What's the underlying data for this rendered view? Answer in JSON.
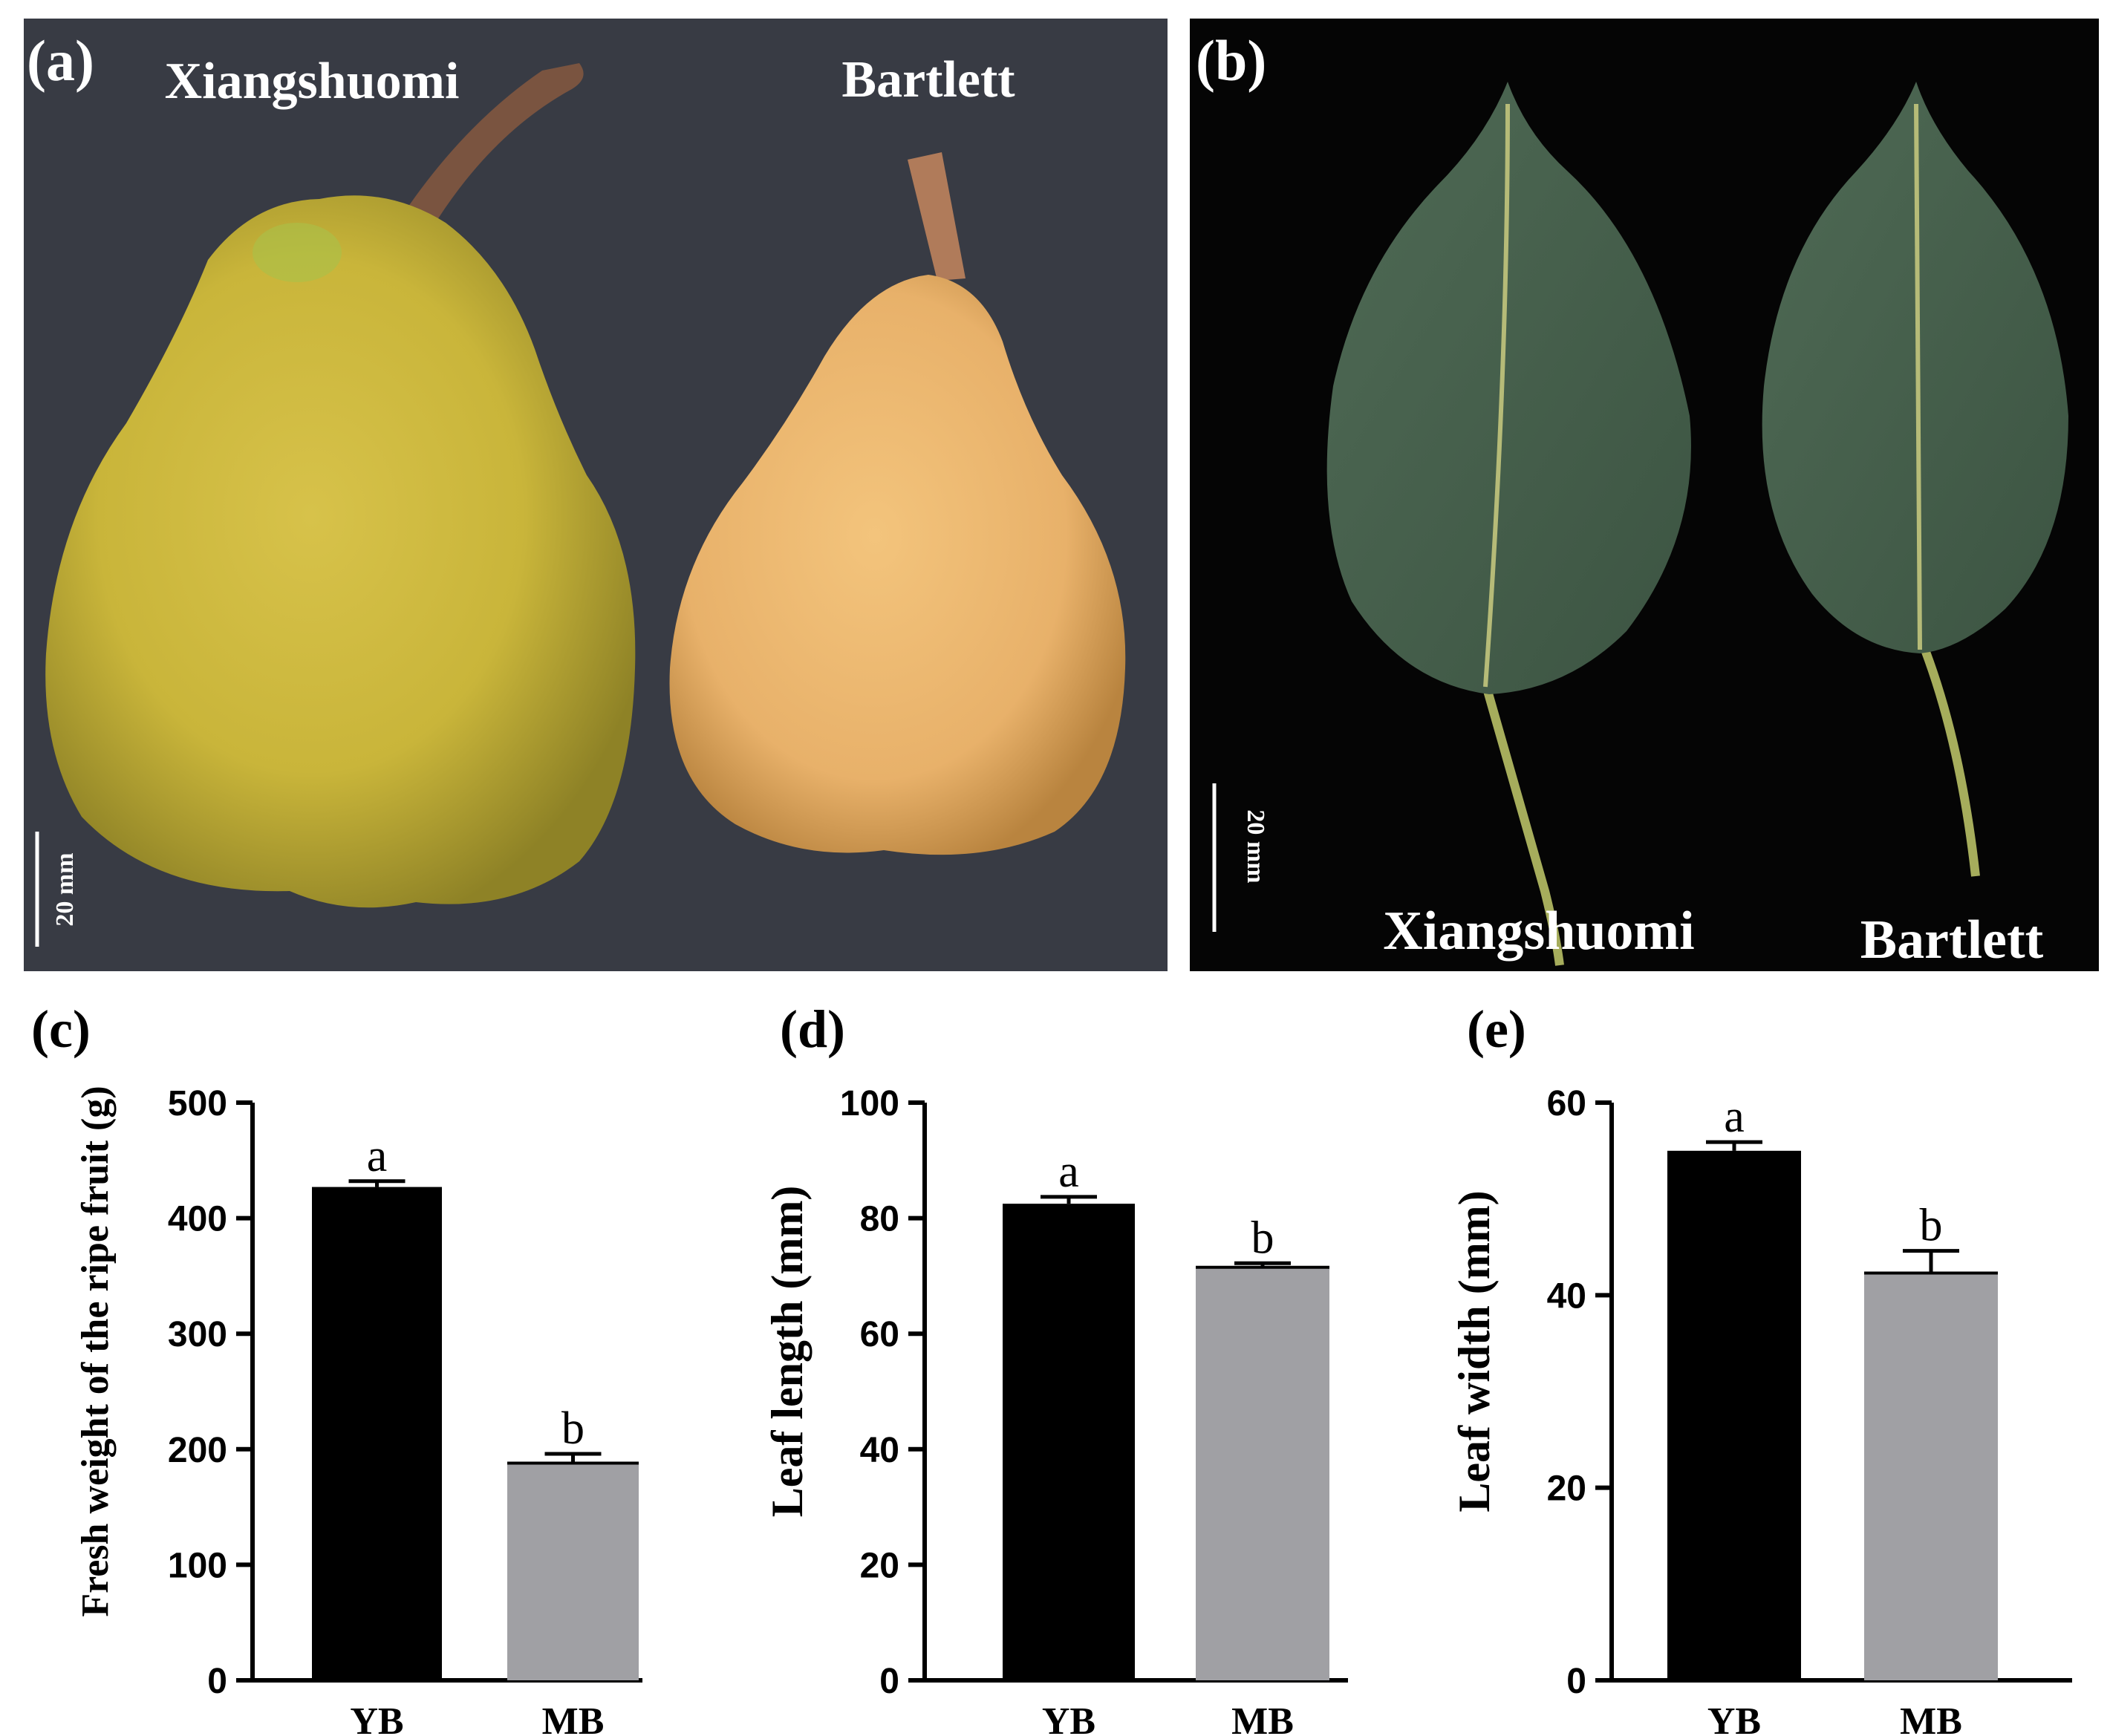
{
  "panel_a": {
    "label": "(a)",
    "cultivar_left": "Xiangshuomi",
    "cultivar_right": "Bartlett",
    "scale_bar": "20 mm",
    "background_color": "#383b44"
  },
  "panel_b": {
    "label": "(b)",
    "cultivar_left": "Xiangshuomi",
    "cultivar_right": "Bartlett",
    "scale_bar": "20 mm",
    "background_color": "#050505"
  },
  "colors": {
    "YB": "#000000",
    "MB": "#a0a0a4"
  },
  "chart_data": [
    {
      "panel": "(c)",
      "type": "bar",
      "title": "",
      "xlabel": "",
      "ylabel": "Fresh weight of the ripe fruit (g)",
      "categories": [
        "YB",
        "MB"
      ],
      "values": [
        427,
        188
      ],
      "errors": [
        5,
        8
      ],
      "significance": [
        "a",
        "b"
      ],
      "ylim": [
        0,
        500
      ],
      "yticks": [
        0,
        100,
        200,
        300,
        400,
        500
      ],
      "ytick_labels": [
        "0",
        "100",
        "200",
        "300",
        "400",
        "500"
      ]
    },
    {
      "panel": "(d)",
      "type": "bar",
      "title": "",
      "xlabel": "",
      "ylabel": "Leaf  length (mm)",
      "categories": [
        "YB",
        "MB"
      ],
      "values": [
        82.5,
        71.5
      ],
      "errors": [
        1.2,
        0.7
      ],
      "significance": [
        "a",
        "b"
      ],
      "ylim": [
        0,
        100
      ],
      "yticks": [
        0,
        20,
        40,
        60,
        80,
        100
      ],
      "ytick_labels": [
        "0",
        "20",
        "40",
        "60",
        "80",
        "100"
      ]
    },
    {
      "panel": "(e)",
      "type": "bar",
      "title": "",
      "xlabel": "",
      "ylabel": "Leaf  width (mm)",
      "categories": [
        "YB",
        "MB"
      ],
      "values": [
        55,
        42.3
      ],
      "errors": [
        0.9,
        2.3
      ],
      "significance": [
        "a",
        "b"
      ],
      "ylim": [
        0,
        60
      ],
      "yticks": [
        0,
        20,
        40,
        60
      ],
      "ytick_labels": [
        "0",
        "20",
        "40",
        "60"
      ]
    }
  ]
}
